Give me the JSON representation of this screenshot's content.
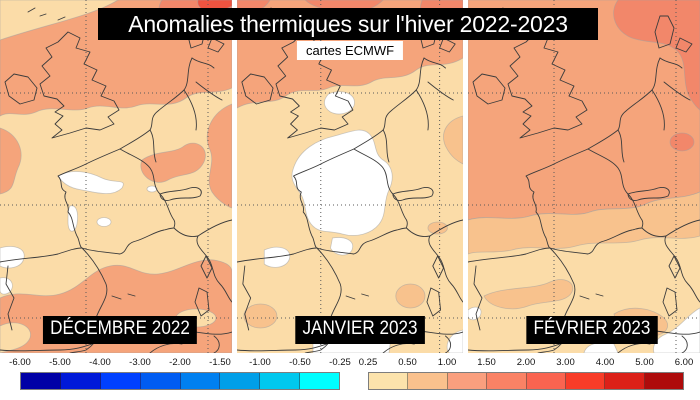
{
  "title": "Anomalies thermiques sur l'hiver 2022-2023",
  "subtitle": "cartes ECMWF",
  "panels": [
    {
      "label": "DÉCEMBRE 2022"
    },
    {
      "label": "JANVIER 2023"
    },
    {
      "label": "FÉVRIER 2023"
    }
  ],
  "palette": {
    "map_cream": "#fbdca8",
    "map_peach": "#f8c28d",
    "map_salmon": "#f5a47b",
    "map_coral": "#f2876a",
    "map_red": "#ee5340",
    "coastline": "#3c3c3c",
    "grid": "#5a5a5a",
    "title_bg": "#000000",
    "title_fg": "#ffffff"
  },
  "chart_data": {
    "type": "heatmap",
    "title": "Anomalies thermiques sur l'hiver 2022-2023",
    "source_note": "cartes ECMWF",
    "region": "Europe de l'Ouest (îles Britanniques, France, Espagne, Italie, Afrique du Nord)",
    "grid": "latitude/longitude en pointillés",
    "panels": [
      {
        "label": "DÉCEMBRE 2022",
        "summary": "Anomalies +0.5 à +1.5 sur la majeure partie de l'Europe de l'Ouest, proches de 0 sur le centre de la France et le nord-ouest de l'Espagne, +1.5 à +2.5 vers la Scandinavie"
      },
      {
        "label": "JANVIER 2023",
        "summary": "Anomalies proches de 0 (blanc) sur la France et le nord de l'Espagne, +1 à +2 des îles Britanniques à la mer du Nord et la Scandinavie, +0.25 à +1 en Méditerranée"
      },
      {
        "label": "FÉVRIER 2023",
        "summary": "Anomalies +1 à +2 du nord de la France aux îles Britanniques et à la Scandinavie, +0.25 à +1 sur la péninsule Ibérique et la Méditerranée, proches de 0 sur la côte nord-africaine"
      }
    ],
    "colorbars": [
      {
        "side": "negative",
        "tick_labels": [
          "-6.00",
          "-5.00",
          "-4.00",
          "-3.00",
          "-2.00",
          "-1.50",
          "-1.00",
          "-0.50",
          "-0.25"
        ],
        "cell_colors": [
          "#0000a6",
          "#0019d9",
          "#0040ff",
          "#005cf2",
          "#0080f0",
          "#009fe8",
          "#00c8ee",
          "#00feff"
        ]
      },
      {
        "side": "positive",
        "tick_labels": [
          "0.25",
          "0.50",
          "1.00",
          "1.50",
          "2.00",
          "3.00",
          "4.00",
          "5.00",
          "6.00"
        ],
        "cell_colors": [
          "#fce3ac",
          "#fac18d",
          "#fa9f7e",
          "#fa8265",
          "#fa6450",
          "#f83c28",
          "#dc2018",
          "#ae0b0b"
        ]
      }
    ]
  }
}
